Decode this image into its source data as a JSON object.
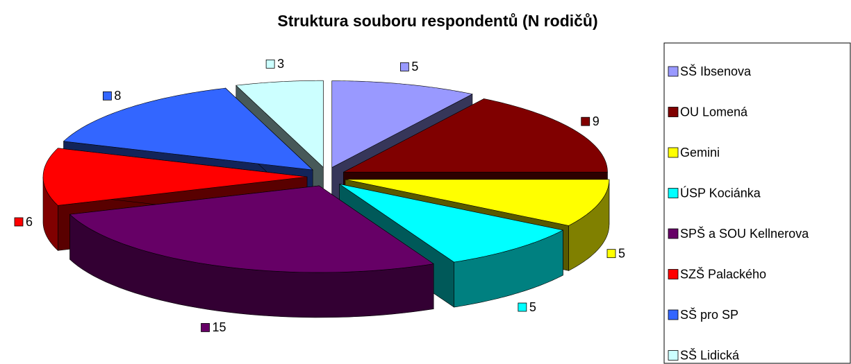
{
  "chart_data": {
    "type": "pie3d",
    "title": "Struktura souboru respondentů (N rodičů)",
    "categories": [
      "SŠ Ibsenova",
      "OU Lomená",
      "Gemini",
      "ÚSP Kociánka",
      "SPŠ a SOU Kellnerova",
      "SZŠ Palackého",
      "SŠ pro SP",
      "SŠ Lidická"
    ],
    "values": [
      5,
      9,
      5,
      5,
      15,
      6,
      8,
      3
    ],
    "colors": [
      "#9999ff",
      "#800000",
      "#ffff00",
      "#00ffff",
      "#660066",
      "#ff0000",
      "#3366ff",
      "#ccffff"
    ],
    "legend": "right"
  }
}
